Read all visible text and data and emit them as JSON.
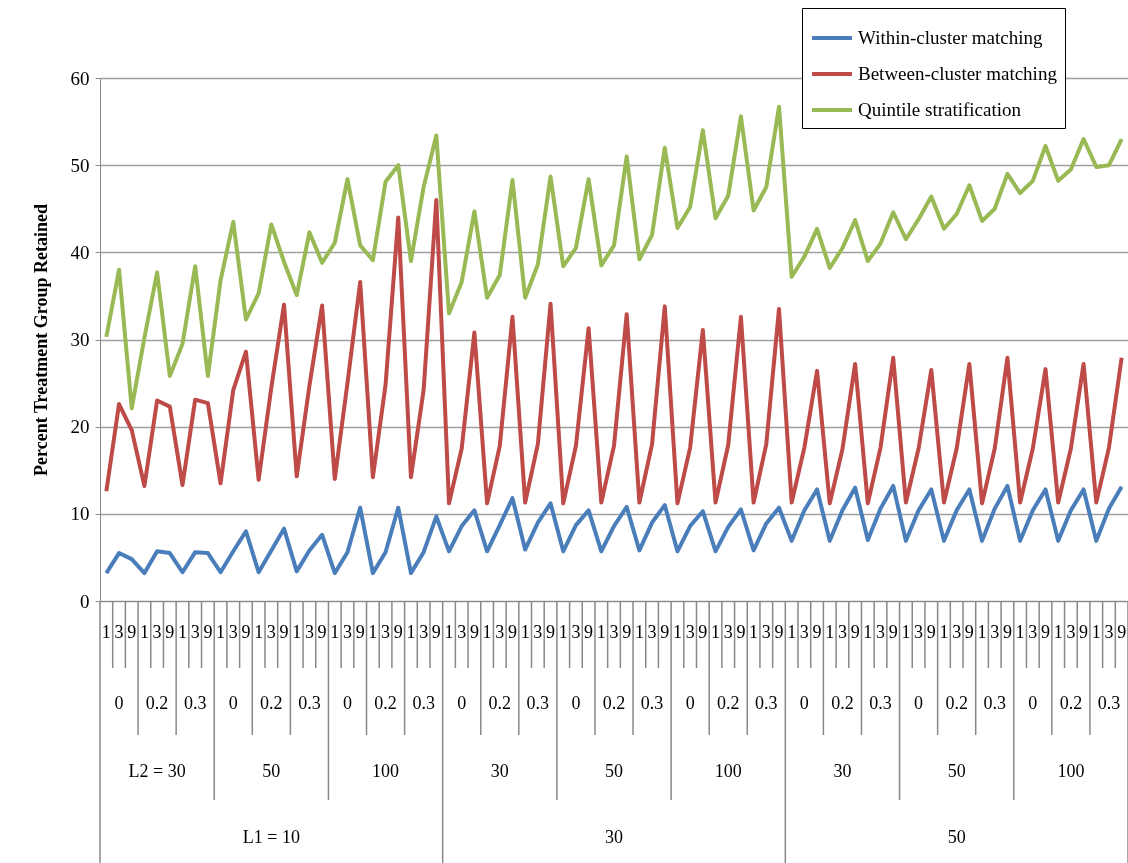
{
  "chart_data": {
    "type": "line",
    "ylabel": "Percent Treatment Group Retained",
    "categories": [
      "1",
      "3",
      "9",
      "1",
      "3",
      "9",
      "1",
      "3",
      "9",
      "1",
      "3",
      "9",
      "1",
      "3",
      "9",
      "1",
      "3",
      "9",
      "1",
      "3",
      "9",
      "1",
      "3",
      "9",
      "1",
      "3",
      "9",
      "1",
      "3",
      "9",
      "1",
      "3",
      "9",
      "1",
      "3",
      "9",
      "1",
      "3",
      "9",
      "1",
      "3",
      "9",
      "1",
      "3",
      "9",
      "1",
      "3",
      "9",
      "1",
      "3",
      "9",
      "1",
      "3",
      "9",
      "1",
      "3",
      "9",
      "1",
      "3",
      "9",
      "1",
      "3",
      "9",
      "1",
      "3",
      "9",
      "1",
      "3",
      "9",
      "1",
      "3",
      "9",
      "1",
      "3",
      "9",
      "1",
      "3",
      "9",
      "1",
      "3",
      "9"
    ],
    "series": [
      {
        "name": "Within-cluster matching",
        "color": "#4a7ebb",
        "values": [
          3.2,
          5.5,
          4.8,
          3.2,
          5.7,
          5.5,
          3.3,
          5.6,
          5.5,
          3.3,
          5.7,
          8.0,
          3.3,
          5.8,
          8.3,
          3.4,
          5.8,
          7.6,
          3.2,
          5.6,
          10.7,
          3.2,
          5.6,
          10.7,
          3.2,
          5.6,
          9.7,
          5.7,
          8.6,
          10.4,
          5.7,
          8.7,
          11.8,
          5.9,
          9.0,
          11.2,
          5.7,
          8.7,
          10.4,
          5.7,
          8.6,
          10.8,
          5.8,
          9.0,
          11.0,
          5.7,
          8.6,
          10.3,
          5.7,
          8.5,
          10.5,
          5.8,
          8.9,
          10.7,
          6.9,
          10.4,
          12.8,
          6.9,
          10.4,
          13.0,
          7.0,
          10.6,
          13.2,
          6.9,
          10.4,
          12.8,
          6.9,
          10.4,
          12.8,
          6.9,
          10.6,
          13.2,
          6.9,
          10.4,
          12.8,
          6.9,
          10.4,
          12.8,
          6.9,
          10.6,
          13.1
        ]
      },
      {
        "name": "Between-cluster matching",
        "color": "#be4b48",
        "values": [
          12.6,
          22.6,
          19.6,
          13.2,
          23.0,
          22.3,
          13.3,
          23.1,
          22.7,
          13.5,
          24.2,
          28.6,
          13.9,
          24.5,
          34.0,
          14.3,
          24.7,
          33.9,
          14.0,
          25.0,
          36.6,
          14.2,
          24.8,
          44.0,
          14.2,
          24.2,
          46.0,
          11.2,
          17.5,
          30.8,
          11.2,
          17.8,
          32.6,
          11.3,
          18.0,
          34.1,
          11.2,
          17.8,
          31.3,
          11.3,
          17.8,
          32.9,
          11.3,
          18.0,
          33.8,
          11.2,
          17.6,
          31.1,
          11.3,
          17.9,
          32.6,
          11.3,
          18.0,
          33.5,
          11.3,
          17.6,
          26.4,
          11.2,
          17.4,
          27.2,
          11.2,
          17.6,
          27.9,
          11.3,
          17.5,
          26.5,
          11.3,
          17.5,
          27.2,
          11.2,
          17.5,
          27.9,
          11.3,
          17.5,
          26.6,
          11.3,
          17.5,
          27.2,
          11.3,
          17.6,
          27.9
        ]
      },
      {
        "name": "Quintile stratification",
        "color": "#98b954",
        "values": [
          30.3,
          38.0,
          22.1,
          30.2,
          37.7,
          25.8,
          29.5,
          38.4,
          25.8,
          36.8,
          43.5,
          32.3,
          35.3,
          43.2,
          38.9,
          35.1,
          42.3,
          38.8,
          41.1,
          48.4,
          40.8,
          39.1,
          48.1,
          50.0,
          39.0,
          47.5,
          53.4,
          33.0,
          36.6,
          44.7,
          34.8,
          37.4,
          48.3,
          34.8,
          38.6,
          48.7,
          38.4,
          40.5,
          48.4,
          38.5,
          40.8,
          51.0,
          39.2,
          42.0,
          52.0,
          42.8,
          45.2,
          54.0,
          43.9,
          46.5,
          55.6,
          44.8,
          47.5,
          56.7,
          37.2,
          39.5,
          42.7,
          38.2,
          40.5,
          43.7,
          39.0,
          41.0,
          44.6,
          41.5,
          43.8,
          46.4,
          42.7,
          44.4,
          47.7,
          43.6,
          45.0,
          49.0,
          46.8,
          48.2,
          52.2,
          48.2,
          49.5,
          53.0,
          49.8,
          50.0,
          53.0
        ]
      }
    ],
    "annotations": [
      "0",
      "0.2",
      "0.3",
      "0",
      "0.2",
      "0.3",
      "0",
      "0.2",
      "0.3",
      "0",
      "0.2",
      "0.3",
      "0",
      "0.2",
      "0.3",
      "0",
      "0.2",
      "0.3",
      "0",
      "0.2",
      "0.3",
      "0",
      "0.2",
      "0.3",
      "0",
      "0.2",
      "0.3",
      "L2 = 30",
      "50",
      "100",
      "30",
      "50",
      "100",
      "30",
      "50",
      "100",
      "L1 = 10",
      "30",
      "50"
    ],
    "ylim": [
      0,
      60
    ],
    "yticks": [
      0,
      10,
      20,
      30,
      40,
      50,
      60
    ],
    "grid": true,
    "legend": "top right"
  }
}
